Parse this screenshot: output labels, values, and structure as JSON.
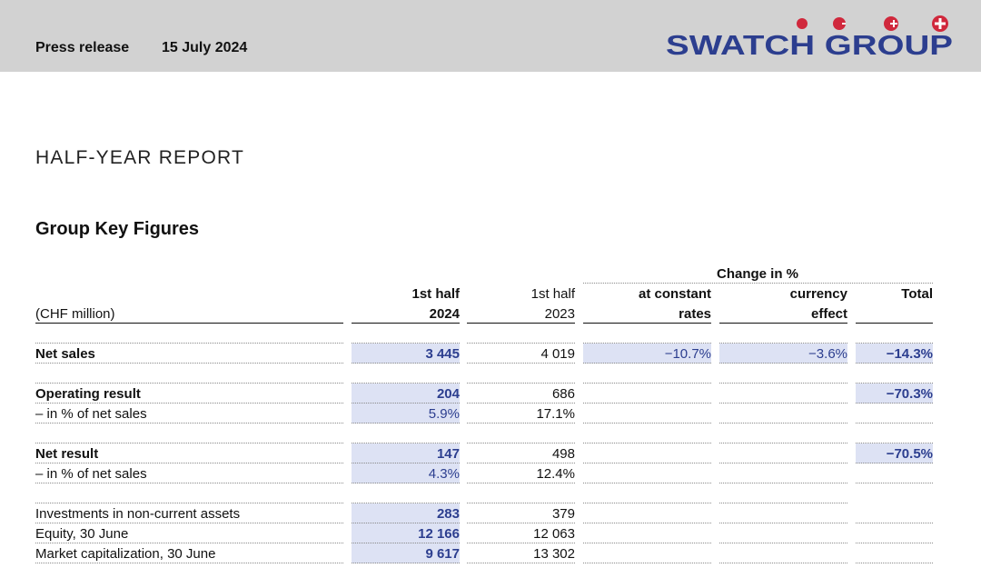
{
  "header": {
    "label": "Press release",
    "date": "15 July 2024",
    "logo_text": "SWATCH GROUP",
    "logo_color": "#2c3e8f",
    "logo_dot_color": "#d0283c"
  },
  "title": "HALF-YEAR REPORT",
  "section": "Group Key Figures",
  "table": {
    "unit": "(CHF million)",
    "change_header": "Change in %",
    "col1": [
      "1st half",
      "2024"
    ],
    "col2": [
      "1st half",
      "2023"
    ],
    "col3": [
      "at constant",
      "rates"
    ],
    "col4": [
      "currency",
      "effect"
    ],
    "col5": [
      "Total"
    ],
    "rows": [
      {
        "label": "Net sales",
        "v2024": "3 445",
        "v2023": "4 019",
        "constant": "−10.7%",
        "currency": "−3.6%",
        "total": "−14.3%"
      },
      {
        "label": "Operating result",
        "v2024": "204",
        "v2023": "686",
        "total": "−70.3%"
      },
      {
        "label": "– in % of net sales",
        "v2024": "5.9%",
        "v2023": "17.1%"
      },
      {
        "label": "Net result",
        "v2024": "147",
        "v2023": "498",
        "total": "−70.5%"
      },
      {
        "label": "– in % of net sales",
        "v2024": "4.3%",
        "v2023": "12.4%"
      },
      {
        "label": "Investments in non-current assets",
        "v2024": "283",
        "v2023": "379"
      },
      {
        "label": "Equity, 30 June",
        "v2024": "12 166",
        "v2023": "12 063"
      },
      {
        "label": "Market capitalization, 30 June",
        "v2024": "9 617",
        "v2023": "13 302"
      }
    ]
  },
  "colors": {
    "header_bg": "#d2d2d2",
    "highlight": "#dde2f4",
    "accent_blue": "#2c3e8f"
  }
}
